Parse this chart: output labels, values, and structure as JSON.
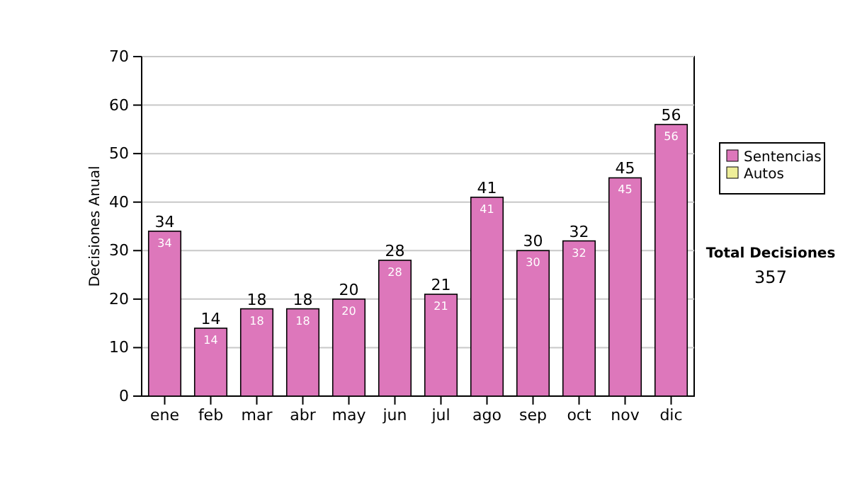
{
  "chart_data": {
    "type": "bar",
    "ylabel": "Decisiones Anual",
    "categories": [
      "ene",
      "feb",
      "mar",
      "abr",
      "may",
      "jun",
      "jul",
      "ago",
      "sep",
      "oct",
      "nov",
      "dic"
    ],
    "series": [
      {
        "name": "Sentencias",
        "color": "#dd77bb",
        "values": [
          34,
          14,
          18,
          18,
          20,
          28,
          21,
          41,
          30,
          32,
          45,
          56
        ],
        "value_labels": [
          "34",
          "14",
          "18",
          "18",
          "20",
          "28",
          "21",
          "41",
          "30",
          "32",
          "45",
          "56"
        ]
      },
      {
        "name": "Autos",
        "color": "#eeee99",
        "values": [
          0,
          0,
          0,
          0,
          0,
          0,
          0,
          0,
          0,
          0,
          0,
          0
        ],
        "value_labels": [
          null,
          null,
          null,
          null,
          null,
          null,
          null,
          null,
          null,
          null,
          null,
          null
        ]
      }
    ],
    "stacked": true,
    "totals": [
      "34",
      "14",
      "18",
      "18",
      "20",
      "28",
      "21",
      "41",
      "30",
      "32",
      "45",
      "56"
    ],
    "ylim": [
      0,
      70
    ],
    "yticks": [
      0,
      10,
      20,
      30,
      40,
      50,
      60,
      70
    ],
    "grid": "y",
    "legend": "right",
    "annotations": [
      "Total Decisiones",
      "357"
    ]
  }
}
